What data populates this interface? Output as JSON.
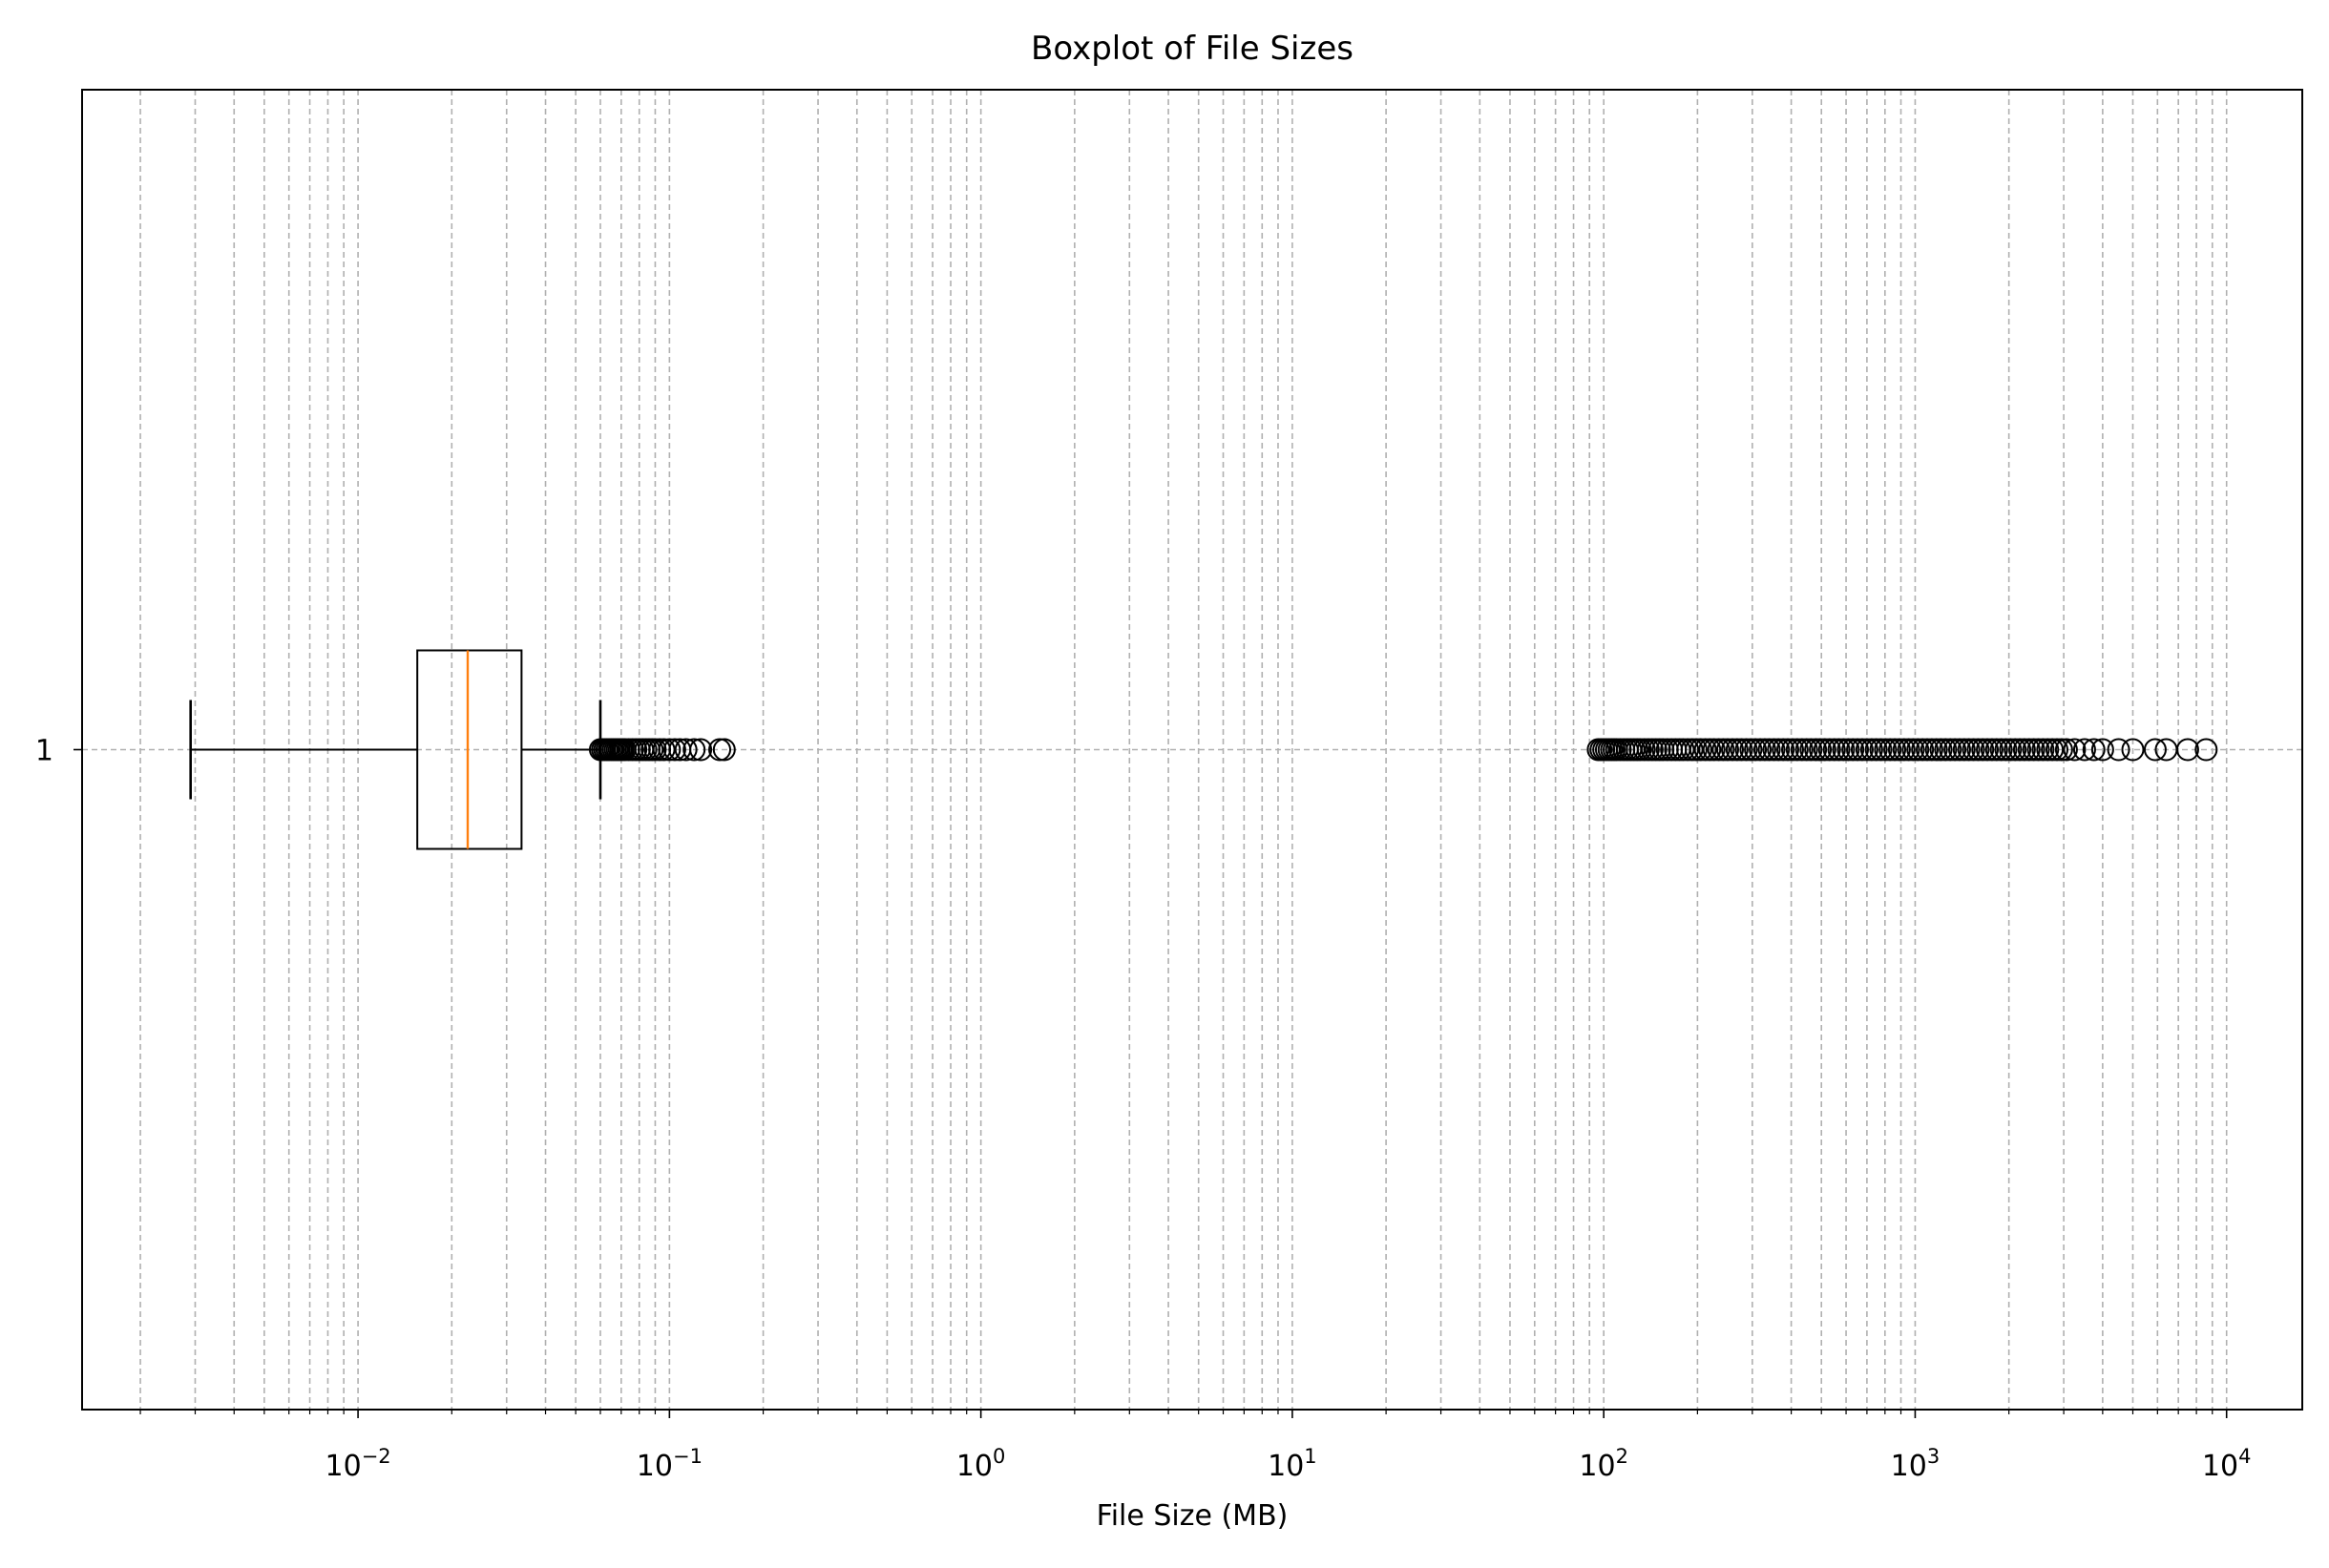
{
  "chart_data": {
    "type": "boxplot",
    "orientation": "horizontal",
    "title": "Boxplot of File Sizes",
    "xlabel": "File Size (MB)",
    "ylabel": "",
    "xscale": "log",
    "xlim": [
      0.0013,
      17500
    ],
    "ylim": [
      0.5,
      1.5
    ],
    "grid": {
      "x_major": true,
      "x_minor": true,
      "y_major": true,
      "style": "dashed",
      "color": "#b0b0b0"
    },
    "y_ticks": [
      {
        "value": 1,
        "label": "1"
      }
    ],
    "x_ticks": [
      {
        "value": 0.01,
        "base": "10",
        "exp": "−2"
      },
      {
        "value": 0.1,
        "base": "10",
        "exp": "−1"
      },
      {
        "value": 1,
        "base": "10",
        "exp": "0"
      },
      {
        "value": 10,
        "base": "10",
        "exp": "1"
      },
      {
        "value": 100,
        "base": "10",
        "exp": "2"
      },
      {
        "value": 1000,
        "base": "10",
        "exp": "3"
      },
      {
        "value": 10000,
        "base": "10",
        "exp": "4"
      }
    ],
    "colors": {
      "box": "#000000",
      "median": "#ff7f0e",
      "outlier_edge": "#000000",
      "grid": "#b0b0b0"
    },
    "box": {
      "position": 1,
      "whisker_low": 0.0029,
      "q1": 0.0155,
      "median": 0.0225,
      "q3": 0.0335,
      "whisker_high": 0.06
    },
    "outliers": [
      0.06,
      0.061,
      0.062,
      0.063,
      0.064,
      0.065,
      0.066,
      0.067,
      0.068,
      0.069,
      0.07,
      0.071,
      0.072,
      0.074,
      0.076,
      0.078,
      0.08,
      0.082,
      0.084,
      0.086,
      0.088,
      0.09,
      0.093,
      0.096,
      0.1,
      0.104,
      0.108,
      0.113,
      0.12,
      0.126,
      0.145,
      0.15,
      96,
      98,
      100,
      102,
      104,
      106,
      108,
      110,
      113,
      116,
      119,
      122,
      125,
      128,
      131,
      135,
      139,
      143,
      147,
      151,
      155,
      160,
      165,
      170,
      175,
      180,
      186,
      192,
      198,
      205,
      212,
      219,
      226,
      234,
      242,
      250,
      259,
      268,
      277,
      287,
      297,
      307,
      318,
      329,
      340,
      352,
      364,
      377,
      390,
      404,
      418,
      433,
      448,
      463,
      479,
      496,
      513,
      531,
      550,
      569,
      589,
      610,
      631,
      653,
      676,
      700,
      725,
      750,
      776,
      803,
      831,
      860,
      890,
      921,
      953,
      986,
      1020,
      1056,
      1093,
      1131,
      1170,
      1211,
      1253,
      1297,
      1342,
      1389,
      1437,
      1487,
      1539,
      1593,
      1648,
      1705,
      1765,
      1826,
      1890,
      1956,
      2024,
      2095,
      2168,
      2243,
      2322,
      2403,
      2487,
      2574,
      2664,
      2757,
      2853,
      2953,
      3060,
      3250,
      3500,
      3750,
      4000,
      4500,
      5000,
      5900,
      6400,
      7500,
      8600
    ]
  }
}
